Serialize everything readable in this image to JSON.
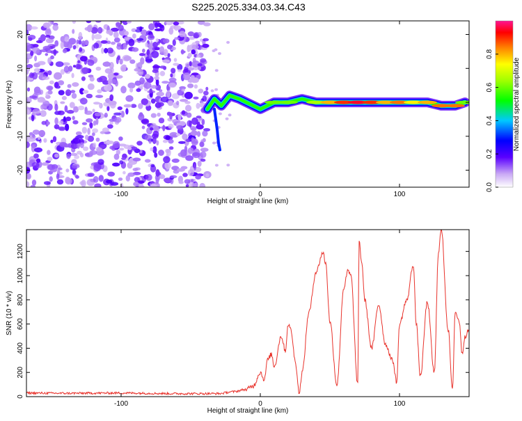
{
  "title": "S225.2025.334.03.34.C43",
  "chart_data": [
    {
      "type": "heatmap",
      "xlabel": "Height of straight line (km)",
      "ylabel": "Frequency (Hz)",
      "xlim": [
        -168,
        150
      ],
      "ylim": [
        -25,
        24
      ],
      "xticks": [
        -100,
        0,
        100
      ],
      "yticks": [
        -20,
        -10,
        0,
        10,
        20
      ],
      "colorbar": {
        "label": "Normalized spectral amplitude",
        "range": [
          0,
          1
        ],
        "ticks": [
          0.0,
          0.2,
          0.4,
          0.6,
          0.8
        ]
      },
      "noise_region": {
        "x": [
          -168,
          -38
        ],
        "level": 0.15
      },
      "ridge": [
        [
          -38,
          -2,
          0.3
        ],
        [
          -33,
          1,
          0.35
        ],
        [
          -28,
          -1,
          0.3
        ],
        [
          -22,
          2,
          0.45
        ],
        [
          -15,
          1,
          0.55
        ],
        [
          -5,
          -1,
          0.5
        ],
        [
          0,
          -2,
          0.45
        ],
        [
          10,
          0,
          0.6
        ],
        [
          20,
          0,
          0.6
        ],
        [
          30,
          1,
          0.55
        ],
        [
          40,
          0,
          0.65
        ],
        [
          50,
          0,
          0.8
        ],
        [
          60,
          0,
          0.9
        ],
        [
          70,
          0,
          0.95
        ],
        [
          80,
          0,
          0.9
        ],
        [
          90,
          0,
          0.8
        ],
        [
          100,
          0,
          0.85
        ],
        [
          110,
          0,
          0.75
        ],
        [
          120,
          0,
          0.8
        ],
        [
          130,
          -1,
          0.85
        ],
        [
          140,
          -1,
          0.85
        ],
        [
          147,
          0,
          0.6
        ]
      ]
    },
    {
      "type": "line",
      "xlabel": "Height of straight line (km)",
      "ylabel": "SNR (10 * v/v)",
      "xlim": [
        -168,
        150
      ],
      "ylim": [
        0,
        1380
      ],
      "xticks": [
        -100,
        0,
        100
      ],
      "yticks": [
        0,
        200,
        400,
        600,
        800,
        1000,
        1200
      ],
      "color": "#e8312a",
      "series": [
        {
          "x": [
            -168,
            -140,
            -100,
            -60,
            -30,
            -20,
            -10,
            -5,
            0,
            3,
            5,
            8,
            10,
            15,
            18,
            20,
            22,
            25,
            28,
            30,
            35,
            40,
            45,
            47,
            50,
            55,
            60,
            63,
            65,
            70,
            71,
            73,
            75,
            80,
            85,
            90,
            95,
            98,
            100,
            105,
            110,
            112,
            115,
            120,
            125,
            128,
            130,
            135,
            138,
            140,
            143,
            145,
            147,
            150
          ],
          "y": [
            30,
            28,
            30,
            25,
            25,
            40,
            60,
            90,
            200,
            140,
            300,
            350,
            250,
            500,
            380,
            600,
            550,
            300,
            30,
            200,
            700,
            1030,
            1190,
            1100,
            620,
            100,
            900,
            1040,
            1000,
            100,
            1280,
            1100,
            800,
            400,
            760,
            430,
            300,
            120,
            600,
            790,
            1090,
            600,
            170,
            780,
            200,
            1200,
            1380,
            550,
            50,
            700,
            620,
            350,
            500,
            550
          ]
        }
      ]
    }
  ]
}
